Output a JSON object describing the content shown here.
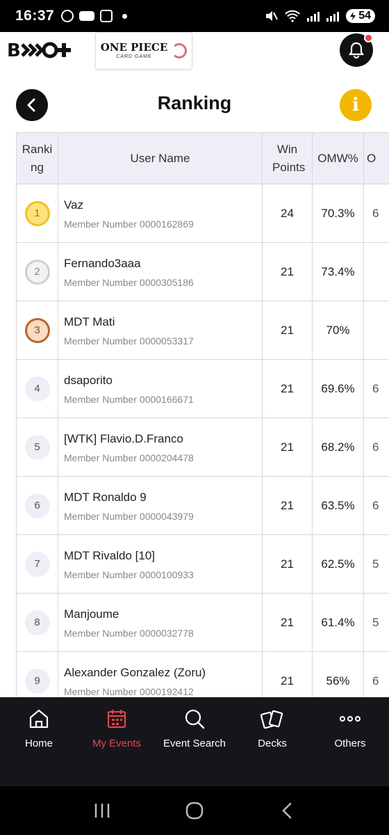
{
  "status_bar": {
    "time": "16:37",
    "battery": "54"
  },
  "header": {
    "brand_logo_text": "B⁠⟨⟩+",
    "onepiece_logo": "ONE PIECE",
    "onepiece_sub": "CARD GAME"
  },
  "page": {
    "title": "Ranking",
    "info_glyph": "i"
  },
  "table": {
    "columns": [
      "Ranking",
      "User Name",
      "Win Points",
      "OMW%",
      "O"
    ],
    "rows": [
      {
        "rank": "1",
        "name": "Vaz",
        "member": "Member Number 0000162869",
        "win_points": "24",
        "omw": "70.3%",
        "more": "6"
      },
      {
        "rank": "2",
        "name": "Fernando3aaa",
        "member": "Member Number 0000305186",
        "win_points": "21",
        "omw": "73.4%",
        "more": ""
      },
      {
        "rank": "3",
        "name": "MDT Mati",
        "member": "Member Number 0000053317",
        "win_points": "21",
        "omw": "70%",
        "more": ""
      },
      {
        "rank": "4",
        "name": "dsaporito",
        "member": "Member Number 0000166671",
        "win_points": "21",
        "omw": "69.6%",
        "more": "6"
      },
      {
        "rank": "5",
        "name": "[WTK] Flavio.D.Franco",
        "member": "Member Number 0000204478",
        "win_points": "21",
        "omw": "68.2%",
        "more": "6"
      },
      {
        "rank": "6",
        "name": "MDT Ronaldo 9",
        "member": "Member Number 0000043979",
        "win_points": "21",
        "omw": "63.5%",
        "more": "6"
      },
      {
        "rank": "7",
        "name": "MDT Rivaldo [10]",
        "member": "Member Number 0000100933",
        "win_points": "21",
        "omw": "62.5%",
        "more": "5"
      },
      {
        "rank": "8",
        "name": "Manjoume",
        "member": "Member Number 0000032778",
        "win_points": "21",
        "omw": "61.4%",
        "more": "5"
      },
      {
        "rank": "9",
        "name": "Alexander Gonzalez (Zoru)",
        "member": "Member Number 0000192412",
        "win_points": "21",
        "omw": "56%",
        "more": "6"
      }
    ]
  },
  "bottom_nav": [
    {
      "label": "Home",
      "icon": "home-icon",
      "active": false
    },
    {
      "label": "My Events",
      "icon": "calendar-icon",
      "active": true
    },
    {
      "label": "Event Search",
      "icon": "search-icon",
      "active": false
    },
    {
      "label": "Decks",
      "icon": "cards-icon",
      "active": false
    },
    {
      "label": "Others",
      "icon": "more-icon",
      "active": false
    }
  ],
  "colors": {
    "accent": "#e4434f",
    "info": "#f2b705",
    "nav_bg": "#16161a",
    "header_bg": "#eeeef6"
  }
}
